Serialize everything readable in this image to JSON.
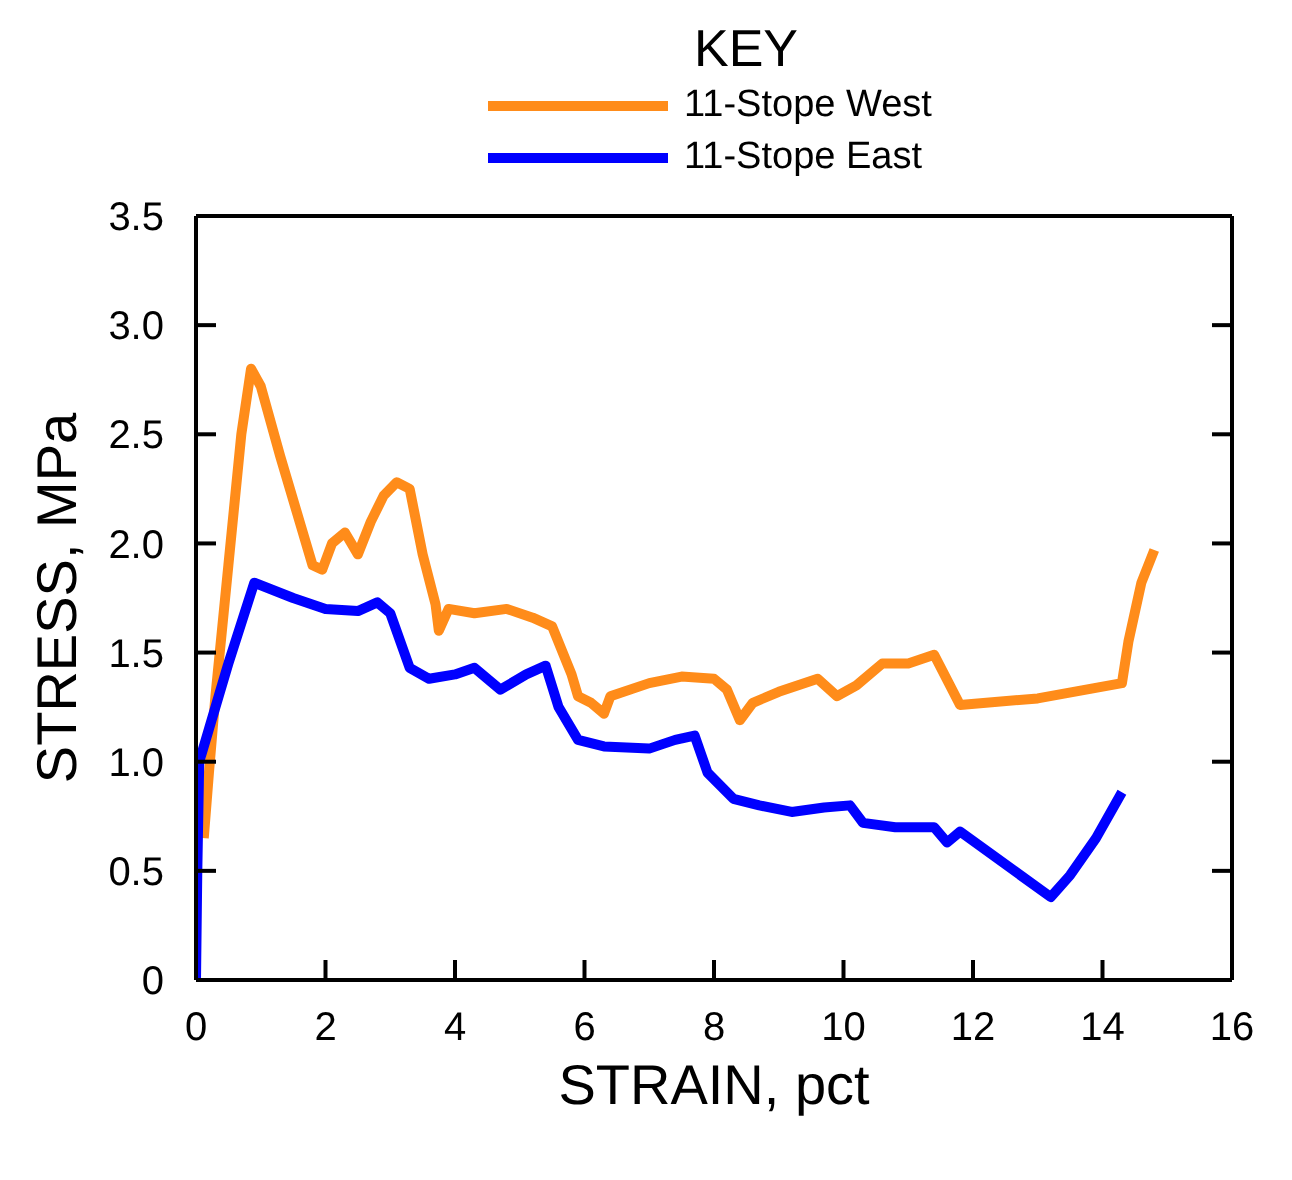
{
  "chart_data": {
    "type": "line",
    "xlabel": "STRAIN, pct",
    "ylabel": "STRESS, MPa",
    "legend_title": "KEY",
    "legend": "top",
    "marker": "none",
    "line_style": "solid",
    "xlim": [
      0,
      16
    ],
    "xticks": [
      0,
      2,
      4,
      6,
      8,
      10,
      12,
      14,
      16
    ],
    "ylim": [
      0,
      3.5
    ],
    "yticks": [
      0,
      0.5,
      {
        "value": 1,
        "label": "1.0"
      },
      1.5,
      {
        "value": 2,
        "label": "2.0"
      },
      2.5,
      {
        "value": 3,
        "label": "3.0"
      },
      3.5
    ],
    "series": [
      {
        "name": "11-Stope West",
        "color": "#ff8c1a",
        "x": [
          0.12,
          0.2,
          0.3,
          0.5,
          0.7,
          0.85,
          1.0,
          1.3,
          1.6,
          1.8,
          1.95,
          2.1,
          2.3,
          2.5,
          2.7,
          2.9,
          3.1,
          3.3,
          3.5,
          3.7,
          3.75,
          3.9,
          4.3,
          4.8,
          5.2,
          5.5,
          5.8,
          5.9,
          6.1,
          6.3,
          6.4,
          7.0,
          7.5,
          8.0,
          8.2,
          8.4,
          8.6,
          9.0,
          9.3,
          9.6,
          9.9,
          10.2,
          10.6,
          11.0,
          11.4,
          11.8,
          13.0,
          14.3,
          14.4,
          14.6,
          14.8
        ],
        "values": [
          0.65,
          0.95,
          1.3,
          1.9,
          2.5,
          2.8,
          2.72,
          2.4,
          2.1,
          1.9,
          1.88,
          2.0,
          2.05,
          1.95,
          2.1,
          2.22,
          2.28,
          2.25,
          1.95,
          1.72,
          1.6,
          1.7,
          1.68,
          1.7,
          1.66,
          1.62,
          1.4,
          1.3,
          1.27,
          1.22,
          1.3,
          1.36,
          1.39,
          1.38,
          1.33,
          1.19,
          1.27,
          1.32,
          1.35,
          1.38,
          1.3,
          1.35,
          1.45,
          1.45,
          1.49,
          1.26,
          1.29,
          1.36,
          1.55,
          1.82,
          1.97
        ]
      },
      {
        "name": "11-Stope East",
        "color": "#0000ff",
        "x": [
          0,
          0.02,
          0.05,
          0.2,
          0.5,
          0.9,
          1.5,
          2.0,
          2.5,
          2.8,
          3.0,
          3.3,
          3.6,
          4.0,
          4.3,
          4.7,
          5.1,
          5.4,
          5.6,
          5.9,
          6.3,
          7.0,
          7.4,
          7.7,
          7.9,
          8.3,
          8.7,
          9.2,
          9.7,
          10.1,
          10.3,
          10.8,
          11.4,
          11.6,
          11.8,
          13.2,
          13.5,
          13.9,
          14.3
        ],
        "values": [
          0,
          0.5,
          1.0,
          1.15,
          1.45,
          1.82,
          1.75,
          1.7,
          1.69,
          1.73,
          1.68,
          1.43,
          1.38,
          1.4,
          1.43,
          1.33,
          1.4,
          1.44,
          1.25,
          1.1,
          1.07,
          1.06,
          1.1,
          1.12,
          0.95,
          0.83,
          0.8,
          0.77,
          0.79,
          0.8,
          0.72,
          0.7,
          0.7,
          0.63,
          0.68,
          0.38,
          0.48,
          0.65,
          0.86
        ]
      }
    ]
  }
}
